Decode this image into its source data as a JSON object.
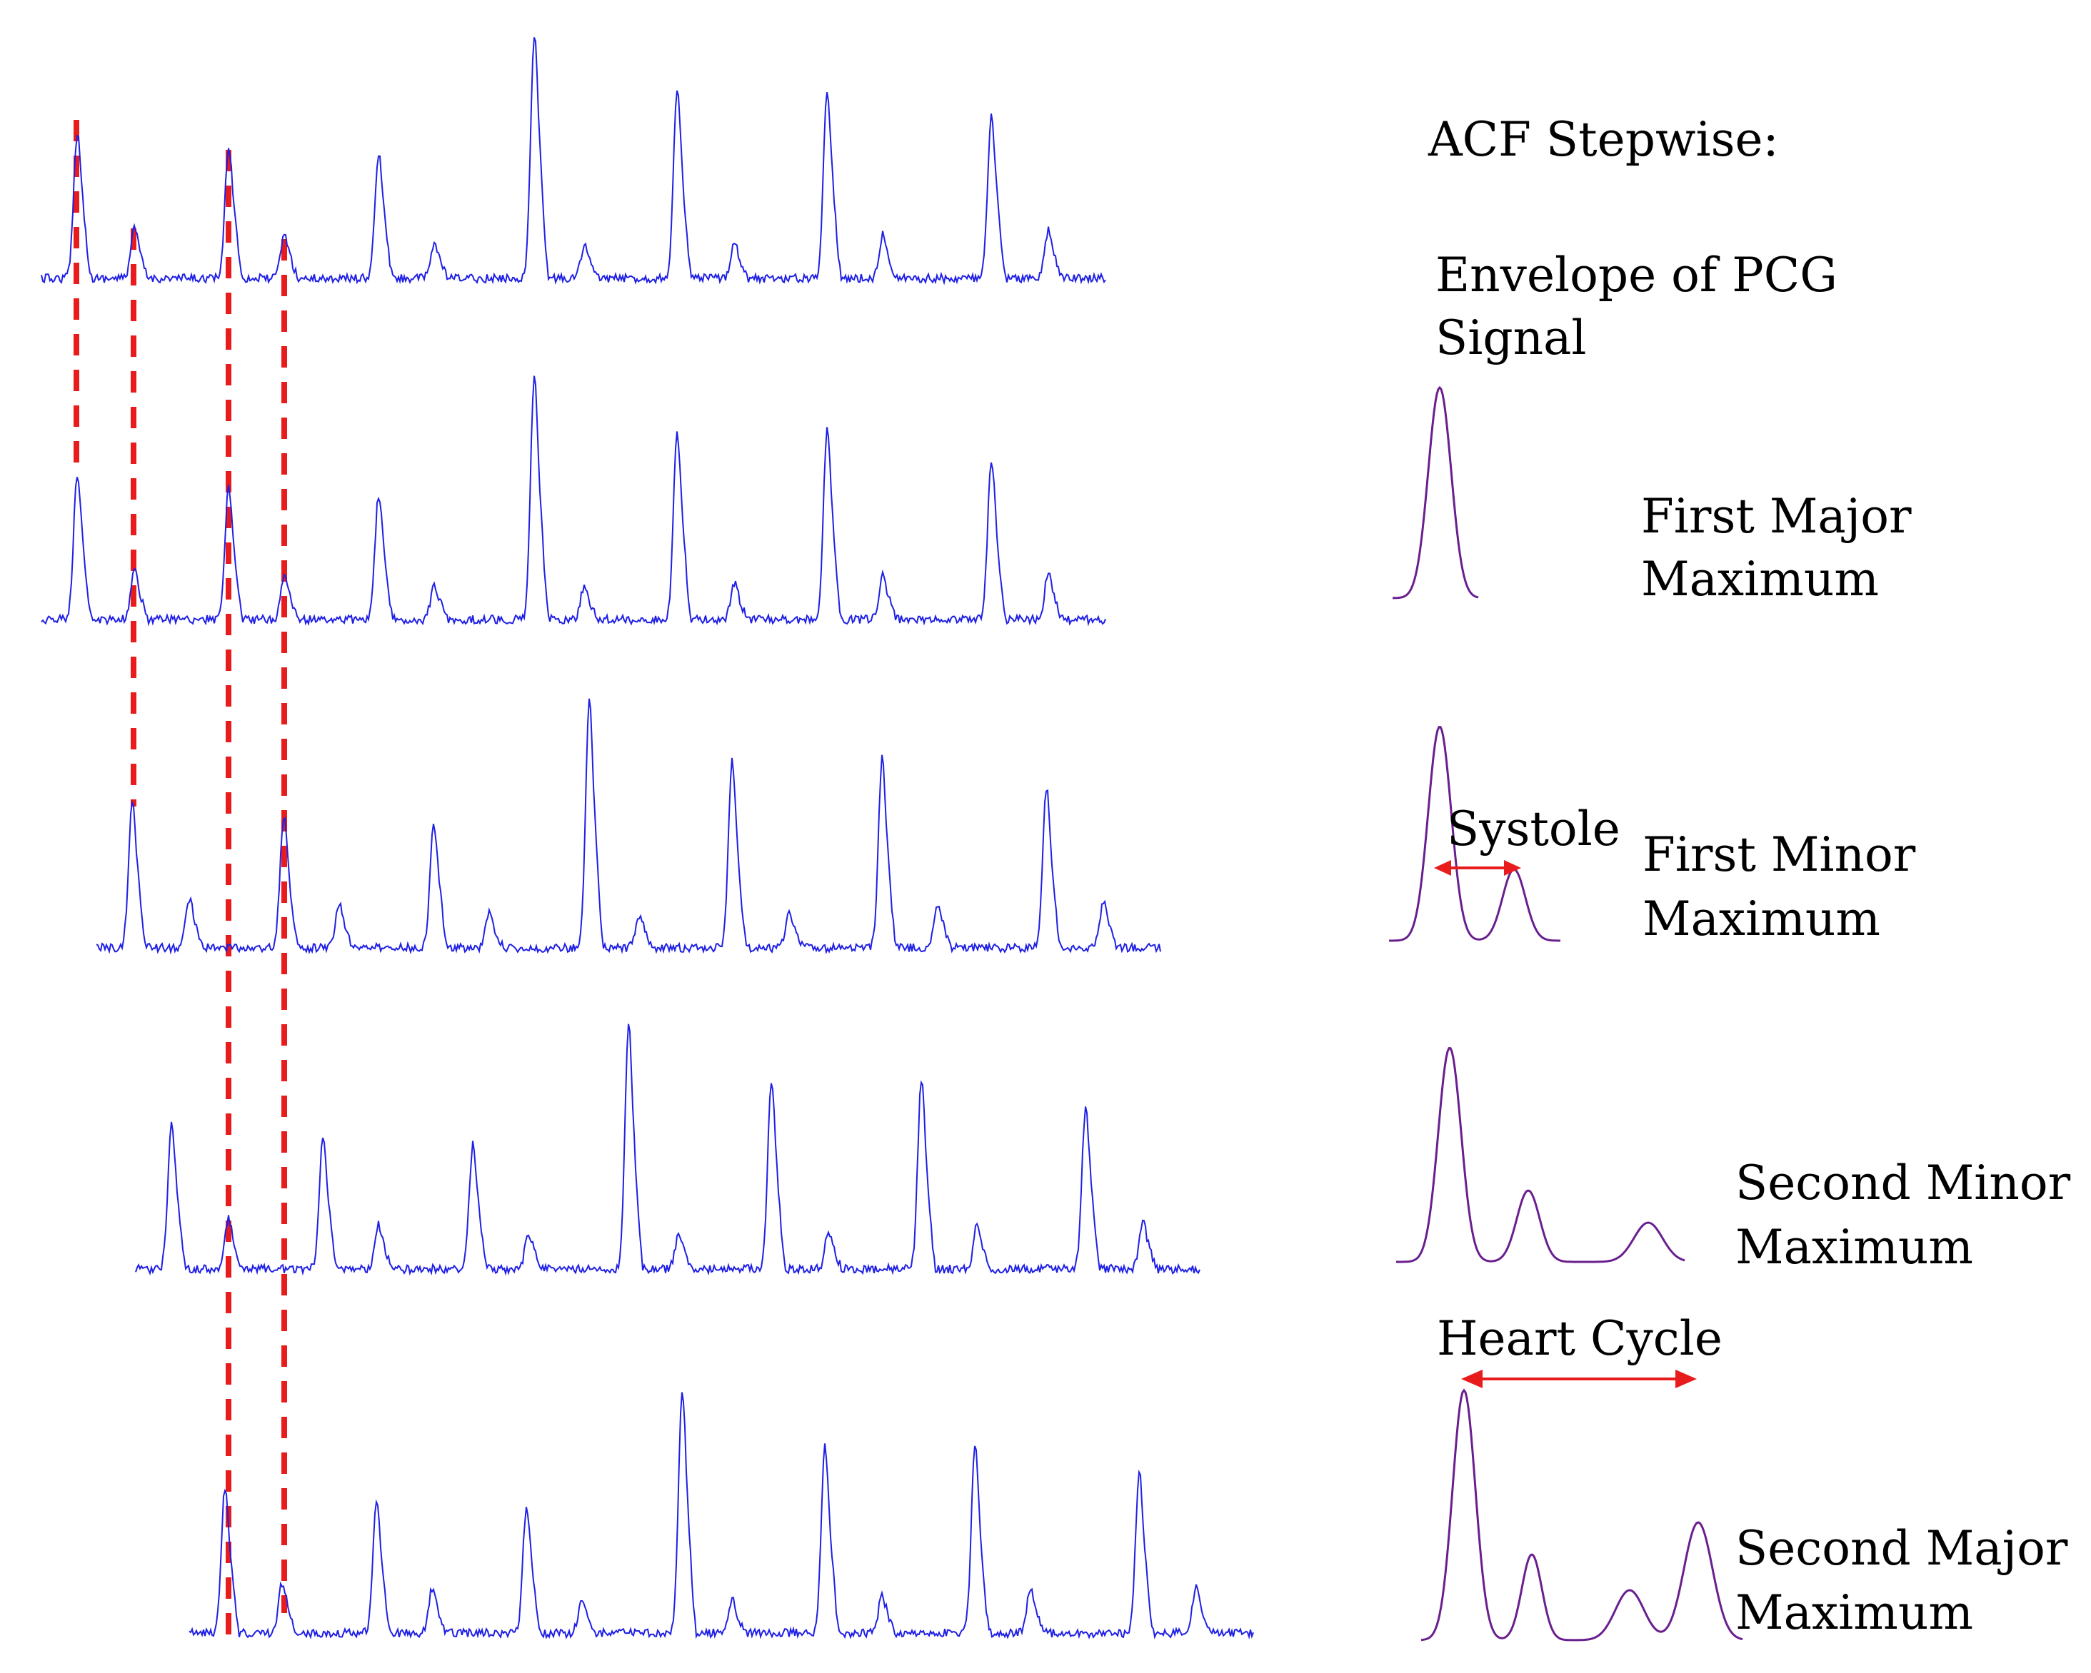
{
  "title": "ACF Stepwise:",
  "colors": {
    "signal": "#1f1fe6",
    "envelope": "#6a1f8f",
    "marker": "#e81c1c",
    "text": "#000000",
    "background": "#ffffff"
  },
  "signal_rows": [
    {
      "id": "row-1",
      "lag_shift": 0
    },
    {
      "id": "row-2",
      "lag_shift": 0
    },
    {
      "id": "row-3",
      "lag_shift": 1
    },
    {
      "id": "row-4",
      "lag_shift": 2
    },
    {
      "id": "row-5",
      "lag_shift": 3
    }
  ],
  "steps": [
    {
      "id": "envelope",
      "label_lines": [
        "Envelope of PCG",
        "Signal"
      ]
    },
    {
      "id": "first-major",
      "label_lines": [
        "First Major",
        "Maximum"
      ]
    },
    {
      "id": "first-minor",
      "label_lines": [
        "First Minor",
        "Maximum"
      ],
      "annotation": "Systole"
    },
    {
      "id": "second-minor",
      "label_lines": [
        "Second Minor",
        "Maximum"
      ]
    },
    {
      "id": "second-major",
      "label_lines": [
        "Second Major",
        "Maximum"
      ],
      "annotation": "Heart Cycle"
    }
  ]
}
